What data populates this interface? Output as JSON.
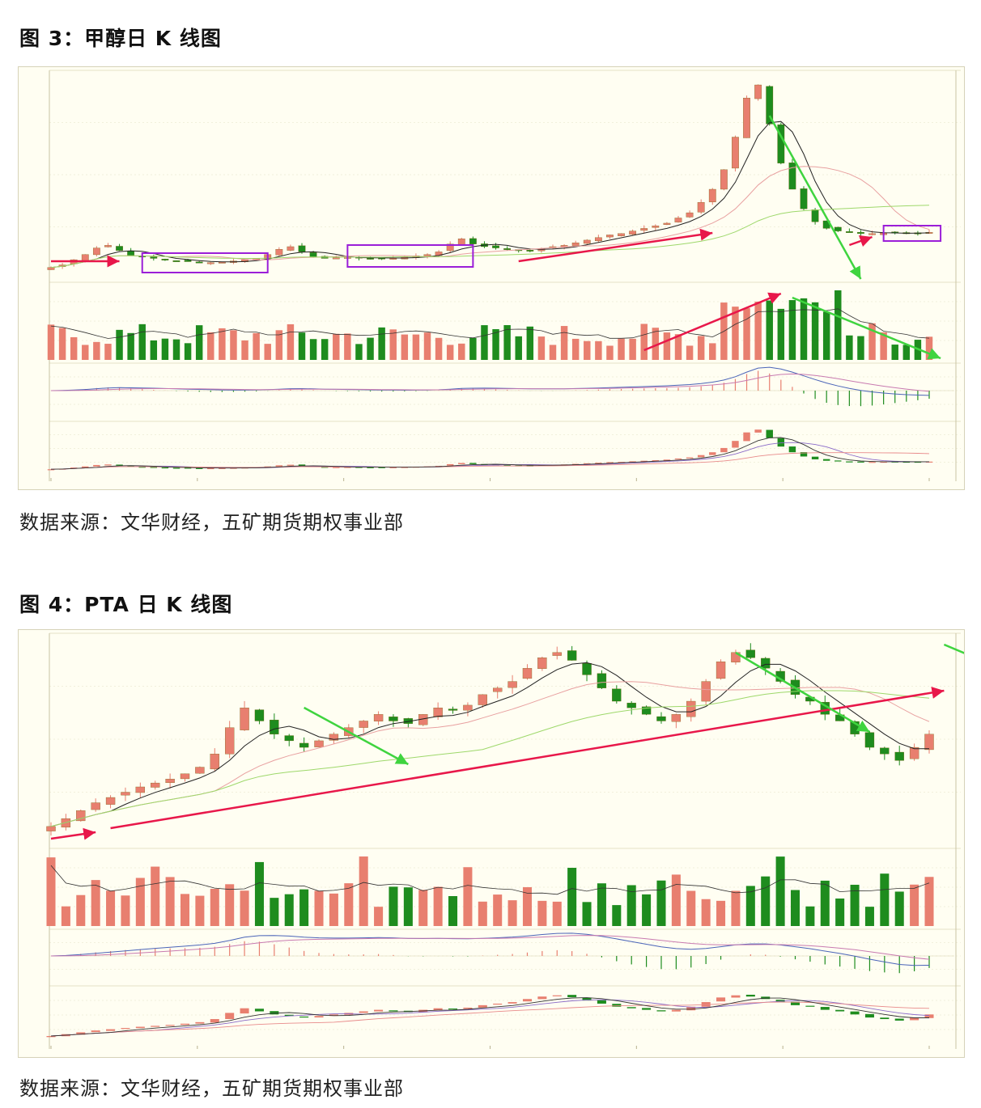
{
  "figures": [
    {
      "title": "图 3：甲醇日 K 线图",
      "source": "数据来源：文华财经，五矿期货期权事业部"
    },
    {
      "title": "图 4：PTA 日 K 线图",
      "source": "数据来源：文华财经，五矿期货期权事业部"
    }
  ],
  "colors": {
    "background": "#fffef2",
    "up_candle": "#e87f6f",
    "down_candle": "#1e8c1e",
    "trend_up_arrow": "#e8174a",
    "trend_down_arrow": "#3fd43f",
    "range_box": "#9b1ed8",
    "grid": "#e6e2c6"
  },
  "chart_data": [
    {
      "type": "candlestick",
      "panels": [
        "price",
        "volume",
        "macd",
        "ma"
      ],
      "series": [
        {
          "values": [
            1700,
            1720,
            1760,
            1800,
            1850,
            1870,
            1830,
            1790,
            1780,
            1770,
            1760,
            1750,
            1745,
            1740,
            1738,
            1742,
            1750,
            1760,
            1770,
            1800,
            1840,
            1860,
            1820,
            1780,
            1770,
            1775,
            1780,
            1775,
            1770,
            1768,
            1772,
            1780,
            1790,
            1800,
            1820,
            1880,
            1920,
            1880,
            1860,
            1850,
            1840,
            1835,
            1830,
            1845,
            1860,
            1870,
            1890,
            1910,
            1930,
            1950,
            1960,
            1980,
            2000,
            2020,
            2040,
            2080,
            2120,
            2200,
            2300,
            2450,
            2700,
            3000,
            3100,
            2800,
            2500,
            2300,
            2150,
            2050,
            2000,
            1980,
            1970,
            1960,
            1960,
            1965,
            1970,
            1960,
            1965,
            1970
          ]
        }
      ],
      "annotations": {
        "range_boxes": 3,
        "up_arrows": 4,
        "down_arrows": 2
      }
    },
    {
      "type": "candlestick",
      "panels": [
        "price",
        "volume",
        "macd",
        "ma"
      ],
      "series": [
        {
          "values": [
            3500,
            3560,
            3620,
            3680,
            3720,
            3760,
            3800,
            3830,
            3860,
            3900,
            3950,
            4050,
            4250,
            4400,
            4300,
            4200,
            4150,
            4100,
            4150,
            4200,
            4250,
            4300,
            4350,
            4300,
            4280,
            4350,
            4400,
            4380,
            4420,
            4500,
            4550,
            4600,
            4700,
            4780,
            4820,
            4760,
            4650,
            4550,
            4450,
            4400,
            4350,
            4300,
            4350,
            4450,
            4600,
            4750,
            4820,
            4780,
            4700,
            4600,
            4500,
            4450,
            4350,
            4300,
            4200,
            4100,
            4050,
            4000,
            4100,
            4200
          ]
        }
      ],
      "annotations": {
        "up_arrows": 2,
        "down_arrows": 3
      }
    }
  ]
}
